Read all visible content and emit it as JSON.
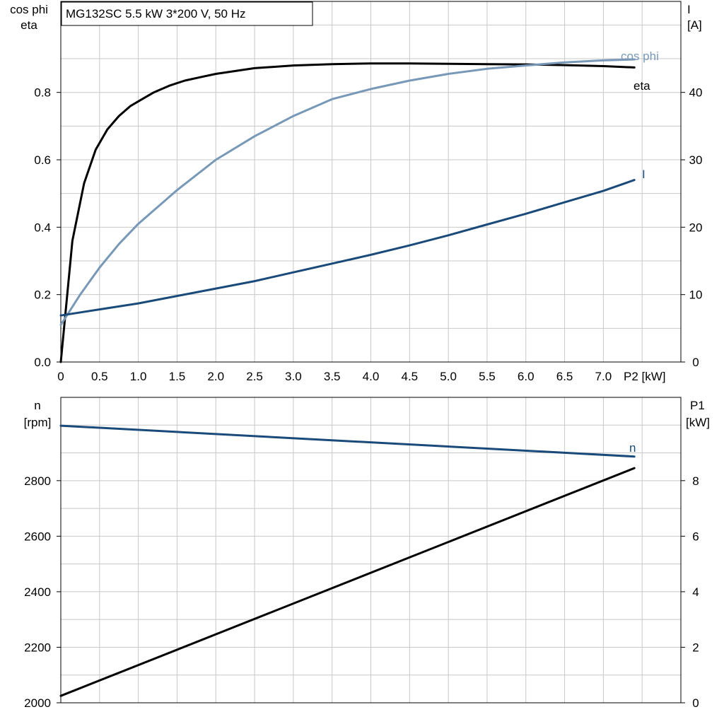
{
  "chart_data": [
    {
      "type": "line",
      "title": "MG132SC   5.5 kW   3*200 V, 50 Hz",
      "xlabel": "P2 [kW]",
      "x_ticks": [
        "0",
        "0.5",
        "1.0",
        "1.5",
        "2.0",
        "2.5",
        "3.0",
        "3.5",
        "4.0",
        "4.5",
        "5.0",
        "5.5",
        "6.0",
        "6.5",
        "7.0"
      ],
      "xlim": [
        0,
        8.0
      ],
      "y_left": {
        "label_line1": "cos phi",
        "label_line2": "eta",
        "lim": [
          0,
          1.07
        ],
        "ticks": [
          "0.0",
          "0.2",
          "0.4",
          "0.6",
          "0.8"
        ]
      },
      "y_right": {
        "label_line1": "I",
        "label_line2": "[A]",
        "lim": [
          0,
          53.5
        ],
        "ticks": [
          "0",
          "10",
          "20",
          "30",
          "40"
        ]
      },
      "grid": true,
      "series": [
        {
          "name": "eta",
          "axis": "left",
          "color": "#000000",
          "x": [
            0,
            0.15,
            0.3,
            0.45,
            0.6,
            0.75,
            0.9,
            1.05,
            1.2,
            1.4,
            1.6,
            1.8,
            2.0,
            2.5,
            3.0,
            3.5,
            4.0,
            4.5,
            5.0,
            5.5,
            6.0,
            6.5,
            7.0,
            7.4
          ],
          "y": [
            0.0,
            0.36,
            0.53,
            0.63,
            0.69,
            0.73,
            0.76,
            0.78,
            0.8,
            0.82,
            0.835,
            0.845,
            0.855,
            0.872,
            0.88,
            0.884,
            0.886,
            0.886,
            0.885,
            0.884,
            0.883,
            0.881,
            0.878,
            0.874
          ]
        },
        {
          "name": "cos phi",
          "axis": "left",
          "color": "#7898b8",
          "x": [
            0,
            0.25,
            0.5,
            0.75,
            1.0,
            1.25,
            1.5,
            2.0,
            2.5,
            3.0,
            3.5,
            4.0,
            4.5,
            5.0,
            5.5,
            6.0,
            6.5,
            7.0,
            7.4
          ],
          "y": [
            0.11,
            0.2,
            0.28,
            0.35,
            0.41,
            0.46,
            0.51,
            0.6,
            0.67,
            0.73,
            0.78,
            0.81,
            0.835,
            0.855,
            0.87,
            0.88,
            0.889,
            0.895,
            0.898
          ]
        },
        {
          "name": "I",
          "axis": "right",
          "color": "#1a4a7a",
          "x": [
            0,
            0.5,
            1.0,
            1.5,
            2.0,
            2.5,
            3.0,
            3.5,
            4.0,
            4.5,
            5.0,
            5.5,
            6.0,
            6.5,
            7.0,
            7.4
          ],
          "y": [
            6.9,
            7.8,
            8.7,
            9.8,
            10.9,
            12.0,
            13.3,
            14.6,
            15.9,
            17.3,
            18.8,
            20.4,
            22.0,
            23.7,
            25.4,
            27.0
          ]
        }
      ]
    },
    {
      "type": "line",
      "xlim": [
        0,
        8.0
      ],
      "y_left": {
        "label_line1": "n",
        "label_line2": "[rpm]",
        "lim": [
          2000,
          3100
        ],
        "ticks": [
          "2000",
          "2200",
          "2400",
          "2600",
          "2800"
        ]
      },
      "y_right": {
        "label_line1": "P1",
        "label_line2": "[kW]",
        "lim": [
          0,
          11
        ],
        "ticks": [
          "0",
          "2",
          "4",
          "6",
          "8"
        ]
      },
      "grid": true,
      "series": [
        {
          "name": "n",
          "axis": "left",
          "color": "#1a4a7a",
          "x": [
            0,
            7.4
          ],
          "y": [
            2998,
            2887
          ]
        },
        {
          "axis": "right",
          "color": "#000000",
          "x": [
            0,
            7.4
          ],
          "y": [
            0.25,
            8.45
          ]
        }
      ]
    }
  ]
}
